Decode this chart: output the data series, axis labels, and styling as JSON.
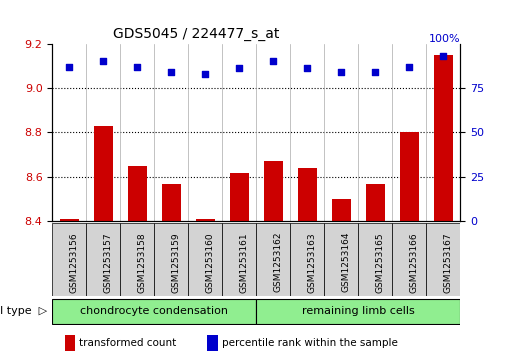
{
  "title": "GDS5045 / 224477_s_at",
  "samples": [
    "GSM1253156",
    "GSM1253157",
    "GSM1253158",
    "GSM1253159",
    "GSM1253160",
    "GSM1253161",
    "GSM1253162",
    "GSM1253163",
    "GSM1253164",
    "GSM1253165",
    "GSM1253166",
    "GSM1253167"
  ],
  "transformed_count": [
    8.41,
    8.83,
    8.65,
    8.57,
    8.41,
    8.62,
    8.67,
    8.64,
    8.5,
    8.57,
    8.8,
    9.15
  ],
  "percentile_rank": [
    87,
    90,
    87,
    84,
    83,
    86,
    90,
    86,
    84,
    84,
    87,
    93
  ],
  "ylim_left": [
    8.4,
    9.2
  ],
  "ylim_right": [
    0,
    100
  ],
  "yticks_left": [
    8.4,
    8.6,
    8.8,
    9.0,
    9.2
  ],
  "yticks_right": [
    0,
    25,
    50,
    75
  ],
  "grid_yticks": [
    8.6,
    8.8,
    9.0
  ],
  "cell_type_groups": [
    {
      "label": "chondrocyte condensation",
      "start": 0,
      "end": 6,
      "color": "#90EE90"
    },
    {
      "label": "remaining limb cells",
      "start": 6,
      "end": 12,
      "color": "#90EE90"
    }
  ],
  "bar_color": "#CC0000",
  "dot_color": "#0000CC",
  "bar_width": 0.55,
  "sample_box_color": "#D3D3D3",
  "legend_items": [
    {
      "label": "transformed count",
      "color": "#CC0000"
    },
    {
      "label": "percentile rank within the sample",
      "color": "#0000CC"
    }
  ],
  "figsize": [
    5.23,
    3.63
  ],
  "dpi": 100
}
